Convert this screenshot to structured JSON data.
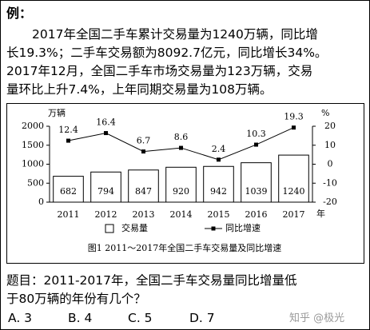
{
  "header": {
    "label": "例："
  },
  "paragraph": [
    "2017年全国二手车累计交易量为1240万辆，同比增",
    "长19.3%；二手车交易额为8092.7亿元，同比增长34%。",
    "2017年12月，全国二手车市场交易量为123万辆，交易",
    "量环比上升7.4%，上年同期交易量为108万辆。"
  ],
  "chart_data": {
    "type": "bar",
    "caption": "图1  2011～2017年全国二手车交易量及同比增速",
    "y_label": "万辆",
    "y2_label": "%",
    "x_label": "年",
    "categories": [
      "2011",
      "2012",
      "2013",
      "2014",
      "2015",
      "2016",
      "2017"
    ],
    "series": [
      {
        "name": "交易量",
        "type": "bar",
        "color": "#ffffff",
        "values": [
          682,
          794,
          847,
          920,
          942,
          1039,
          1240
        ]
      },
      {
        "name": "同比增速",
        "type": "line",
        "axis": "y2",
        "color": "#000000",
        "values": [
          12.4,
          16.4,
          6.7,
          8.6,
          2.4,
          10.3,
          19.3
        ]
      }
    ],
    "ylim": [
      0,
      2000
    ],
    "yticks": [
      0,
      500,
      1000,
      1500,
      2000
    ],
    "y2lim": [
      -20,
      20
    ],
    "y2ticks": [
      -20,
      -10,
      0,
      10,
      20
    ],
    "legend": "bottom"
  },
  "question": [
    "题目：2011-2017年，全国二手车交易量同比增量低",
    "于80万辆的年份有几个？"
  ],
  "options": [
    "A. 3",
    "B. 4",
    "C. 5",
    "D. 7"
  ],
  "watermark": "知乎 @极光"
}
